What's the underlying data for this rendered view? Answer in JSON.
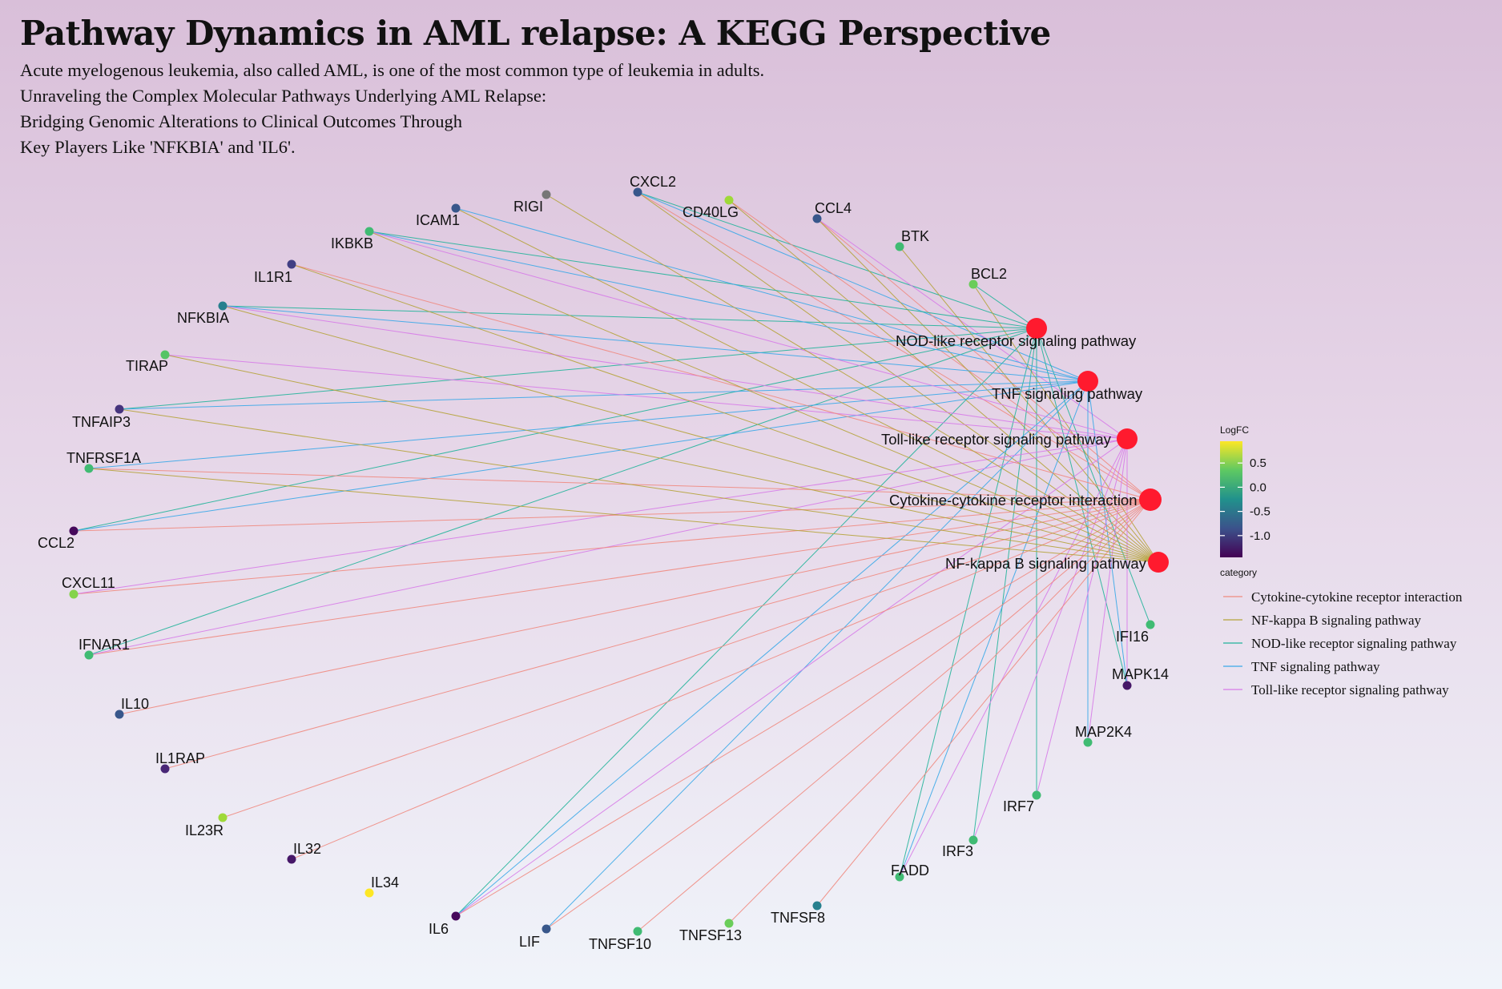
{
  "header": {
    "title": "Pathway Dynamics in AML relapse: A KEGG Perspective",
    "subtitle_lines": [
      "Acute myelogenous leukemia, also called AML, is one of the most common type of leukemia in adults.",
      "Unraveling the Complex Molecular Pathways Underlying AML Relapse:",
      "Bridging Genomic Alterations to Clinical Outcomes Through",
      "Key Players Like 'NFKBIA' and 'IL6'."
    ]
  },
  "colors": {
    "hub": "#ff1a2e",
    "Cytokine-cytokine receptor interaction": "#f08a80",
    "NF-kappa B signaling pathway": "#b5a33a",
    "NOD-like receptor signaling pathway": "#22b49a",
    "TNF signaling pathway": "#3aa8e8",
    "Toll-like receptor signaling pathway": "#d77be8",
    "unknown_gene": "#777777"
  },
  "legend": {
    "logfc_title": "LogFC",
    "logfc_ticks": [
      0.5,
      0.0,
      -0.5,
      -1.0
    ],
    "logfc_tick_labels": [
      "0.5",
      "0.0",
      "-0.5",
      "-1.0"
    ],
    "logfc_range": [
      -1.45,
      0.95
    ],
    "category_title": "category",
    "categories": [
      "Cytokine-cytokine receptor interaction",
      "NF-kappa B signaling pathway",
      "NOD-like receptor signaling pathway",
      "TNF signaling pathway",
      "Toll-like receptor signaling pathway"
    ]
  },
  "network": {
    "hubs": [
      {
        "id": "NOD",
        "label": "NOD-like receptor signaling pathway"
      },
      {
        "id": "TNF",
        "label": "TNF signaling pathway"
      },
      {
        "id": "TLR",
        "label": "Toll-like receptor signaling pathway"
      },
      {
        "id": "CYT",
        "label": "Cytokine-cytokine receptor interaction"
      },
      {
        "id": "NFKB",
        "label": "NF-kappa B signaling pathway"
      }
    ],
    "genes": [
      {
        "name": "CXCL2",
        "logfc": -0.8,
        "paths": [
          "CYT",
          "NFKB",
          "NOD",
          "TNF"
        ]
      },
      {
        "name": "CD40LG",
        "logfc": 0.6,
        "paths": [
          "CYT",
          "NFKB"
        ]
      },
      {
        "name": "CCL4",
        "logfc": -0.8,
        "paths": [
          "CYT",
          "NFKB",
          "TLR"
        ]
      },
      {
        "name": "BTK",
        "logfc": 0.2,
        "paths": [
          "NFKB"
        ]
      },
      {
        "name": "BCL2",
        "logfc": 0.4,
        "paths": [
          "NFKB",
          "NOD"
        ]
      },
      {
        "name": "IFI16",
        "logfc": 0.2,
        "paths": [
          "NOD"
        ]
      },
      {
        "name": "MAPK14",
        "logfc": -1.3,
        "paths": [
          "NOD",
          "TNF",
          "TLR"
        ]
      },
      {
        "name": "MAP2K4",
        "logfc": 0.2,
        "paths": [
          "TNF",
          "TLR"
        ]
      },
      {
        "name": "IRF7",
        "logfc": 0.2,
        "paths": [
          "NOD",
          "TLR"
        ]
      },
      {
        "name": "IRF3",
        "logfc": 0.2,
        "paths": [
          "NOD",
          "TLR"
        ]
      },
      {
        "name": "FADD",
        "logfc": 0.2,
        "paths": [
          "NOD",
          "TNF",
          "TLR"
        ]
      },
      {
        "name": "TNFSF8",
        "logfc": -0.4,
        "paths": [
          "CYT"
        ]
      },
      {
        "name": "TNFSF13",
        "logfc": 0.4,
        "paths": [
          "CYT"
        ]
      },
      {
        "name": "TNFSF10",
        "logfc": 0.2,
        "paths": [
          "CYT"
        ]
      },
      {
        "name": "LIF",
        "logfc": -0.8,
        "paths": [
          "CYT",
          "TNF"
        ]
      },
      {
        "name": "IL6",
        "logfc": -1.4,
        "paths": [
          "CYT",
          "NOD",
          "TNF",
          "TLR"
        ]
      },
      {
        "name": "IL34",
        "logfc": 0.95,
        "paths": []
      },
      {
        "name": "IL32",
        "logfc": -1.3,
        "paths": [
          "CYT"
        ]
      },
      {
        "name": "IL23R",
        "logfc": 0.6,
        "paths": [
          "CYT"
        ]
      },
      {
        "name": "IL1RAP",
        "logfc": -1.2,
        "paths": [
          "CYT"
        ]
      },
      {
        "name": "IL10",
        "logfc": -0.8,
        "paths": [
          "CYT"
        ]
      },
      {
        "name": "IFNAR1",
        "logfc": 0.2,
        "paths": [
          "CYT",
          "NOD",
          "TLR"
        ]
      },
      {
        "name": "CXCL11",
        "logfc": 0.5,
        "paths": [
          "CYT",
          "TLR"
        ]
      },
      {
        "name": "CCL2",
        "logfc": -1.4,
        "paths": [
          "CYT",
          "NOD",
          "TNF"
        ]
      },
      {
        "name": "TNFRSF1A",
        "logfc": 0.2,
        "paths": [
          "CYT",
          "NFKB",
          "TNF"
        ]
      },
      {
        "name": "TNFAIP3",
        "logfc": -1.1,
        "paths": [
          "NFKB",
          "NOD",
          "TNF"
        ]
      },
      {
        "name": "TIRAP",
        "logfc": 0.3,
        "paths": [
          "NFKB",
          "TLR"
        ]
      },
      {
        "name": "NFKBIA",
        "logfc": -0.4,
        "paths": [
          "NFKB",
          "NOD",
          "TNF",
          "TLR"
        ]
      },
      {
        "name": "IL1R1",
        "logfc": -1.0,
        "paths": [
          "CYT",
          "NFKB"
        ]
      },
      {
        "name": "IKBKB",
        "logfc": 0.2,
        "paths": [
          "NFKB",
          "NOD",
          "TNF",
          "TLR"
        ]
      },
      {
        "name": "ICAM1",
        "logfc": -0.8,
        "paths": [
          "NFKB",
          "TNF"
        ]
      },
      {
        "name": "RIGI",
        "logfc": null,
        "paths": [
          "NFKB"
        ]
      }
    ]
  }
}
